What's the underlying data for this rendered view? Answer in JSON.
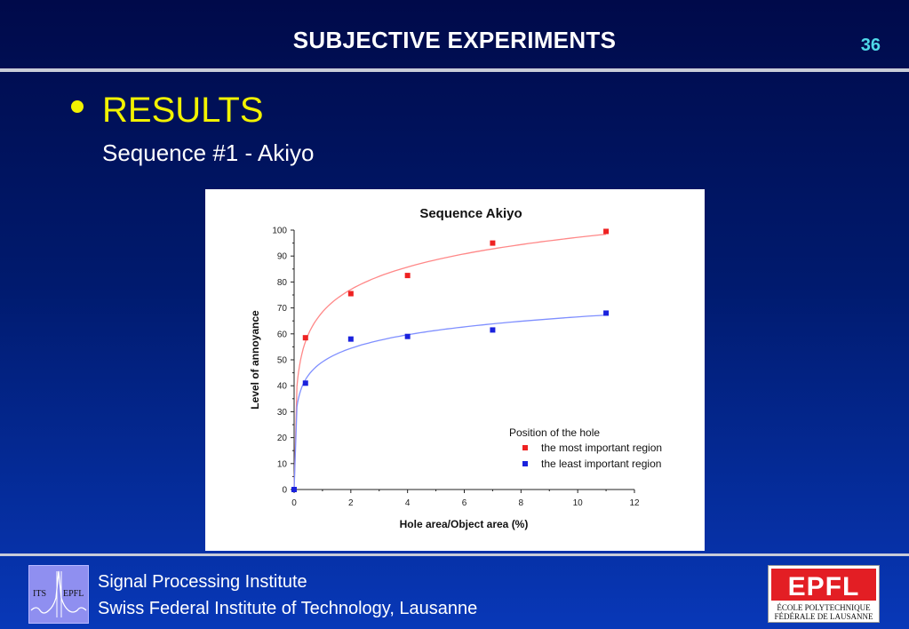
{
  "header": {
    "title": "SUBJECTIVE EXPERIMENTS",
    "page_number": "36"
  },
  "content": {
    "heading": "RESULTS",
    "subheading": "Sequence #1 - Akiyo"
  },
  "chart_data": {
    "type": "scatter",
    "title": "Sequence Akiyo",
    "xlabel": "Hole area/Object area (%)",
    "ylabel": "Level of annoyance",
    "xlim": [
      0,
      12
    ],
    "ylim": [
      0,
      100
    ],
    "xticks": [
      "0",
      "2",
      "4",
      "6",
      "8",
      "10",
      "12"
    ],
    "yticks": [
      "0",
      "10",
      "20",
      "30",
      "40",
      "50",
      "60",
      "70",
      "80",
      "90",
      "100"
    ],
    "legend_title": "Position of the hole",
    "legend_position": "bottom-right",
    "grid": false,
    "series": [
      {
        "name": "the most important region",
        "color": "#ee2222",
        "x": [
          0,
          0.4,
          2,
          4,
          7,
          11
        ],
        "y": [
          0,
          58.5,
          75.5,
          82.5,
          95,
          99.5
        ]
      },
      {
        "name": "the least important region",
        "color": "#1a22dd",
        "x": [
          0,
          0.4,
          2,
          4,
          7,
          11
        ],
        "y": [
          0,
          41,
          58,
          59,
          61.5,
          68
        ]
      }
    ],
    "fit_curves": [
      {
        "series": "the most important region",
        "color": "#ff8888"
      },
      {
        "series": "the least important region",
        "color": "#7f8fff"
      }
    ]
  },
  "footer": {
    "line1": "Signal Processing Institute",
    "line2": "Swiss Federal Institute of Technology, Lausanne",
    "left_logo": {
      "left_text": "ITS",
      "right_text": "EPFL"
    },
    "right_logo": {
      "wordmark": "EPFL",
      "line1": "ÉCOLE POLYTECHNIQUE",
      "line2": "FÉDÉRALE DE LAUSANNE"
    }
  }
}
